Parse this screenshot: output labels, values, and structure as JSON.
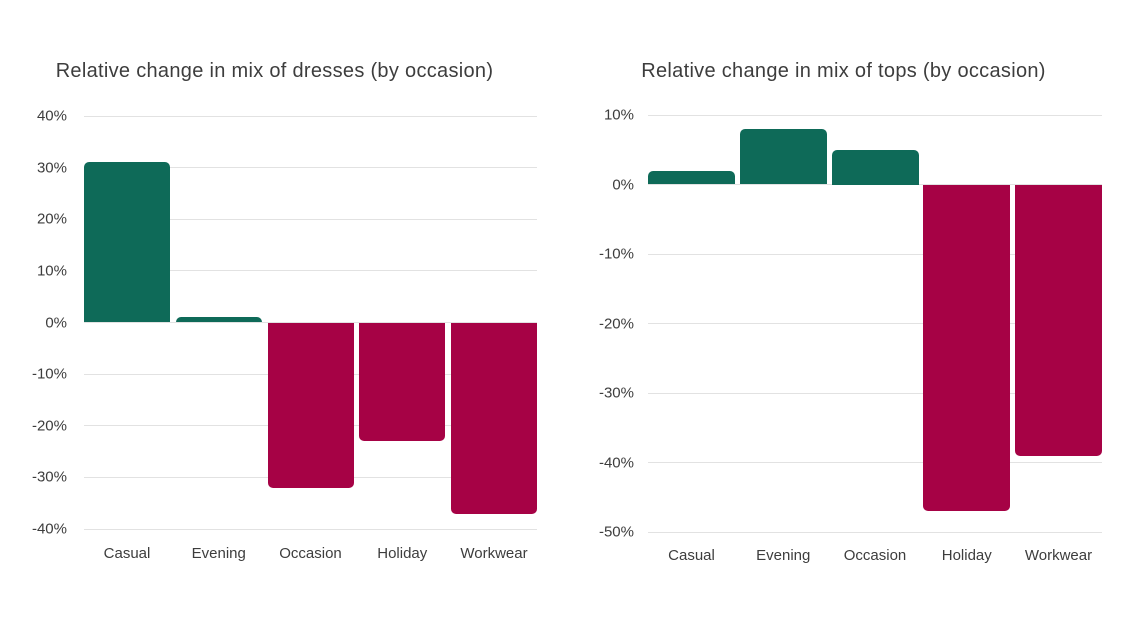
{
  "page": {
    "background": "#FFFFFF"
  },
  "colors": {
    "positive_bar": "#0E6A58",
    "negative_bar": "#A60245",
    "gridline": "#E2E2E2",
    "axis_text": "#3D3D3D",
    "title_text": "#3D3D3D"
  },
  "chart_data": [
    {
      "type": "bar",
      "title": "Relative change in mix of dresses (by occasion)",
      "categories": [
        "Casual",
        "Evening",
        "Occasion",
        "Holiday",
        "Workwear"
      ],
      "values": [
        31,
        1,
        -32,
        -23,
        -37
      ],
      "unit": "%",
      "xlabel": "",
      "ylabel": "",
      "ylim": [
        -40,
        40
      ],
      "yticks": [
        40,
        30,
        20,
        10,
        0,
        -10,
        -20,
        -30,
        -40
      ],
      "ytick_labels": [
        "40%",
        "30%",
        "20%",
        "10%",
        "0%",
        "-10%",
        "-20%",
        "-30%",
        "-40%"
      ],
      "grid": true,
      "legend": "none"
    },
    {
      "type": "bar",
      "title": "Relative change in mix of tops (by occasion)",
      "categories": [
        "Casual",
        "Evening",
        "Occasion",
        "Holiday",
        "Workwear"
      ],
      "values": [
        2,
        8,
        5,
        -47,
        -39
      ],
      "unit": "%",
      "xlabel": "",
      "ylabel": "",
      "ylim": [
        -50,
        10
      ],
      "yticks": [
        10,
        0,
        -10,
        -20,
        -30,
        -40,
        -50
      ],
      "ytick_labels": [
        "10%",
        "0%",
        "-10%",
        "-20%",
        "-30%",
        "-40%",
        "-50%"
      ],
      "grid": true,
      "legend": "none"
    }
  ]
}
